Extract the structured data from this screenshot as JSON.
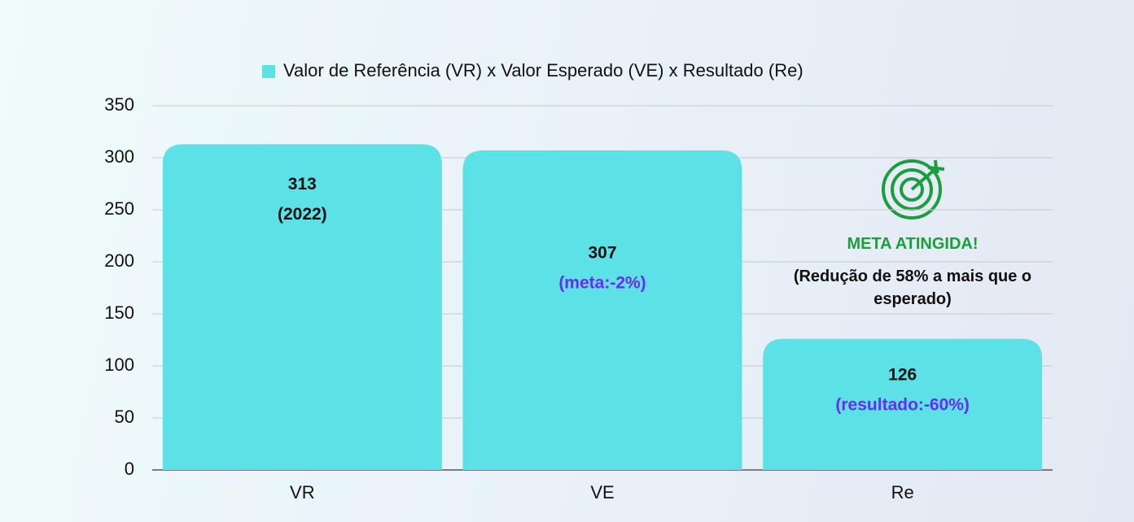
{
  "chart_data": {
    "type": "bar",
    "categories": [
      "VR",
      "VE",
      "Re"
    ],
    "series": [
      {
        "name": "Valor de Referência (VR) x Valor Esperado (VE) x Resultado (Re)",
        "color": "#5ce1e6",
        "values": [
          313,
          307,
          126
        ]
      }
    ],
    "value_notes": [
      "(2022)",
      "(meta:-2%)",
      "(resultado:-60%)"
    ],
    "annotation_title": "META ATINGIDA!",
    "annotation_text": "(Redução de 58% a mais que o esperado)",
    "ylim": [
      0,
      350
    ],
    "yticks": [
      0,
      50,
      100,
      150,
      200,
      250,
      300,
      350
    ],
    "grid": true,
    "legend": "top"
  }
}
